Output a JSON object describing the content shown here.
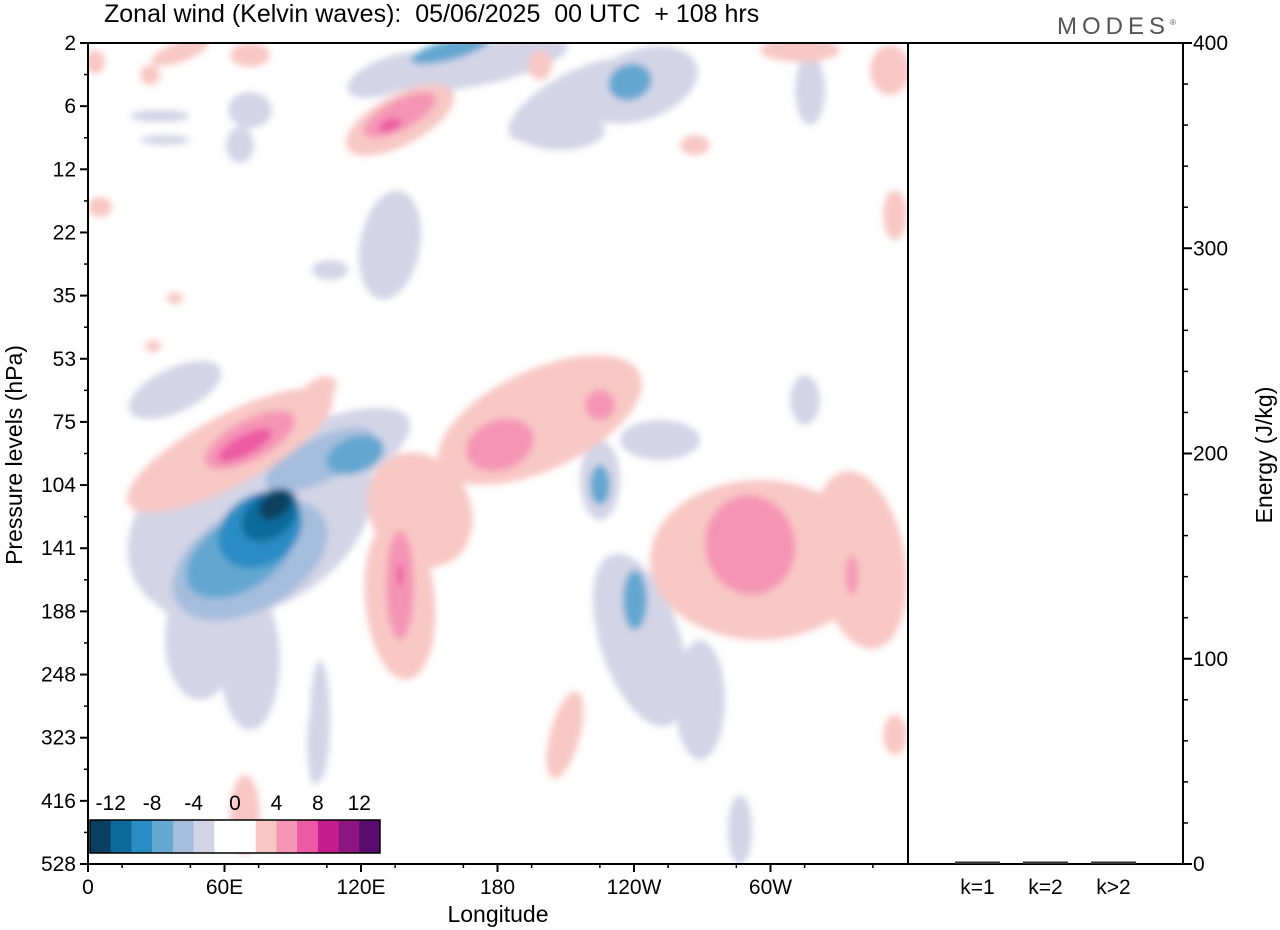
{
  "header": {
    "title": "Zonal wind (Kelvin waves):  05/06/2025  00 UTC  + 108 hrs",
    "brand": "MODES",
    "brand_mark": "®"
  },
  "colors": {
    "scale": [
      "#0b3f5f",
      "#0d6a9c",
      "#2a8cc4",
      "#64a7d1",
      "#a5bddd",
      "#d3d4e6",
      "#ffffff",
      "#ffffff",
      "#f8c7c4",
      "#f595b6",
      "#ec5aa3",
      "#c51d8e",
      "#8c157f",
      "#5a0a6e"
    ]
  },
  "chart_data": [
    {
      "type": "heatmap",
      "title": "Zonal wind (Kelvin waves):  05/06/2025  00 UTC  + 108 hrs",
      "xlabel": "Longitude",
      "ylabel": "Pressure levels (hPa)",
      "x_ticks": [
        "0",
        "60E",
        "120E",
        "180",
        "120W",
        "60W"
      ],
      "y_ticks": [
        "2",
        "6",
        "12",
        "22",
        "35",
        "53",
        "75",
        "104",
        "141",
        "188",
        "248",
        "323",
        "416",
        "528"
      ],
      "colorbar": {
        "labels": [
          "-12",
          "-8",
          "-4",
          "0",
          "4",
          "8",
          "12"
        ],
        "levels": [
          -14,
          -12,
          -10,
          -8,
          -6,
          -4,
          -2,
          0,
          2,
          4,
          6,
          8,
          10,
          12,
          14
        ]
      },
      "features": [
        {
          "lon": 85,
          "level": 125,
          "value": -13
        },
        {
          "lon": 95,
          "level": 95,
          "value": -8
        },
        {
          "lon": 150,
          "level": 3,
          "value": -8
        },
        {
          "lon": 240,
          "level": 5,
          "value": -6
        },
        {
          "lon": 235,
          "level": 160,
          "value": -6
        },
        {
          "lon": 75,
          "level": 80,
          "value": 8
        },
        {
          "lon": 135,
          "level": 7,
          "value": 8
        },
        {
          "lon": 135,
          "level": 150,
          "value": 8
        },
        {
          "lon": 195,
          "level": 85,
          "value": 6
        },
        {
          "lon": 285,
          "level": 130,
          "value": 6
        },
        {
          "lon": 220,
          "level": 70,
          "value": 6
        }
      ]
    },
    {
      "type": "bar",
      "categories": [
        "k=1",
        "k=2",
        "k>2"
      ],
      "values": [
        0.5,
        0.5,
        0.5
      ],
      "ylabel": "Energy (J/kg)",
      "ylim": [
        0,
        400
      ],
      "y_ticks": [
        "0",
        "100",
        "200",
        "300",
        "400"
      ]
    }
  ]
}
